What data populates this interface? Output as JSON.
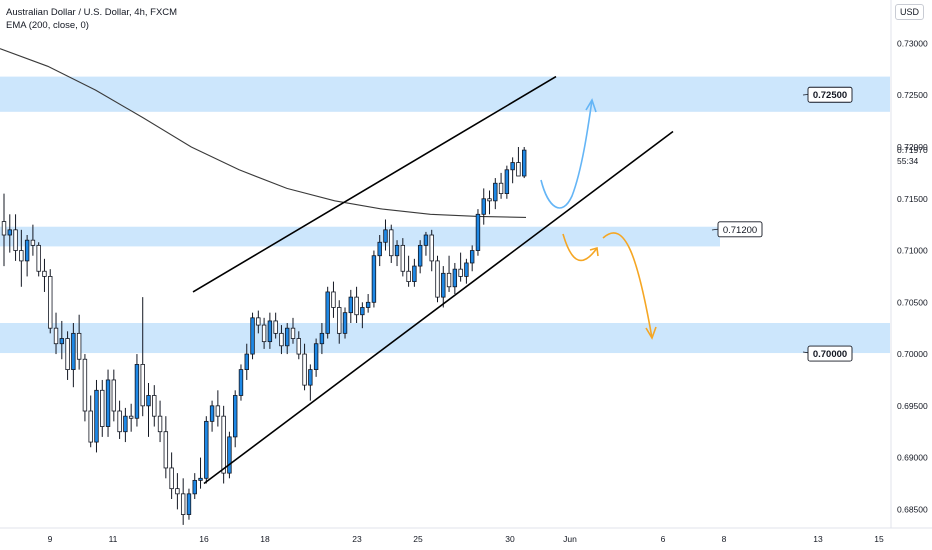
{
  "header": {
    "symbol_line": "Australian Dollar / U.S. Dollar, 4h, FXCM",
    "indicator_line": "EMA (200, close, 0)",
    "currency": "USD"
  },
  "colors": {
    "zone": "#bbdefb",
    "candle_up": "#1e88e5",
    "candle_down": "#ffffff",
    "wick": "#131722",
    "ema": "#3a3a3a",
    "channel": "#000000",
    "arrow_blue": "#64b5f6",
    "arrow_orange": "#f5a623",
    "axis_text": "#131722",
    "gridline": "#f0f3fa"
  },
  "chart_data": {
    "type": "candlestick",
    "symbol": "Australian Dollar / U.S. Dollar",
    "timeframe": "4h",
    "source": "FXCM",
    "indicator": "EMA (200, close, 0)",
    "ylim": [
      0.6832,
      0.7342
    ],
    "y_ticks": [
      "0.73000",
      "0.72500",
      "0.72000",
      "0.71500",
      "0.71000",
      "0.70500",
      "0.70000",
      "0.69500",
      "0.69000",
      "0.68500"
    ],
    "x_ticks": [
      "9",
      "11",
      "16",
      "18",
      "23",
      "25",
      "30",
      "Jun",
      "6",
      "8",
      "13",
      "15"
    ],
    "last_price_label": "0.71970",
    "countdown_label": "55:34",
    "zones": [
      {
        "from": 0.7234,
        "to": 0.7268,
        "label": "0.72500",
        "bold": true
      },
      {
        "from": 0.7104,
        "to": 0.7123,
        "label": "0.71200",
        "bold": false
      },
      {
        "from": 0.7001,
        "to": 0.703,
        "label": "0.70000",
        "bold": true
      }
    ],
    "channel": [
      {
        "from": [
          0.706
        ],
        "to": [
          0.7268
        ]
      },
      {
        "from": [
          0.6875
        ],
        "to": [
          0.7215
        ]
      }
    ],
    "ohlc": [
      [
        0.7128,
        0.7155,
        0.7085,
        0.7115
      ],
      [
        0.7115,
        0.7135,
        0.7098,
        0.712
      ],
      [
        0.712,
        0.7135,
        0.709,
        0.71
      ],
      [
        0.71,
        0.712,
        0.7065,
        0.709
      ],
      [
        0.709,
        0.7115,
        0.7075,
        0.711
      ],
      [
        0.711,
        0.7125,
        0.7095,
        0.7105
      ],
      [
        0.7105,
        0.7108,
        0.7075,
        0.708
      ],
      [
        0.708,
        0.7092,
        0.706,
        0.7075
      ],
      [
        0.7075,
        0.7082,
        0.702,
        0.7025
      ],
      [
        0.7025,
        0.704,
        0.7,
        0.701
      ],
      [
        0.701,
        0.7032,
        0.6995,
        0.7015
      ],
      [
        0.7015,
        0.7022,
        0.6975,
        0.6985
      ],
      [
        0.6985,
        0.703,
        0.6968,
        0.702
      ],
      [
        0.702,
        0.7038,
        0.6985,
        0.6995
      ],
      [
        0.6995,
        0.7,
        0.6935,
        0.6945
      ],
      [
        0.6945,
        0.696,
        0.691,
        0.6915
      ],
      [
        0.6915,
        0.6975,
        0.6905,
        0.6965
      ],
      [
        0.6965,
        0.6975,
        0.692,
        0.693
      ],
      [
        0.693,
        0.6985,
        0.692,
        0.6975
      ],
      [
        0.6975,
        0.6985,
        0.6935,
        0.6945
      ],
      [
        0.6945,
        0.6955,
        0.6918,
        0.6925
      ],
      [
        0.6925,
        0.6948,
        0.6915,
        0.694
      ],
      [
        0.694,
        0.6952,
        0.6925,
        0.6938
      ],
      [
        0.6938,
        0.7,
        0.693,
        0.699
      ],
      [
        0.699,
        0.7055,
        0.694,
        0.695
      ],
      [
        0.695,
        0.6972,
        0.692,
        0.696
      ],
      [
        0.696,
        0.697,
        0.693,
        0.694
      ],
      [
        0.694,
        0.6955,
        0.6915,
        0.6925
      ],
      [
        0.6925,
        0.694,
        0.688,
        0.689
      ],
      [
        0.689,
        0.6905,
        0.686,
        0.687
      ],
      [
        0.687,
        0.6885,
        0.685,
        0.6865
      ],
      [
        0.6865,
        0.688,
        0.6835,
        0.6845
      ],
      [
        0.6845,
        0.687,
        0.684,
        0.6865
      ],
      [
        0.6865,
        0.6885,
        0.686,
        0.6878
      ],
      [
        0.6878,
        0.69,
        0.687,
        0.688
      ],
      [
        0.688,
        0.694,
        0.6875,
        0.6935
      ],
      [
        0.6935,
        0.6955,
        0.6925,
        0.695
      ],
      [
        0.695,
        0.6965,
        0.693,
        0.694
      ],
      [
        0.694,
        0.695,
        0.6875,
        0.6885
      ],
      [
        0.6885,
        0.6925,
        0.688,
        0.692
      ],
      [
        0.692,
        0.6965,
        0.691,
        0.696
      ],
      [
        0.696,
        0.699,
        0.6955,
        0.6985
      ],
      [
        0.6985,
        0.701,
        0.6975,
        0.7
      ],
      [
        0.7,
        0.704,
        0.6995,
        0.7035
      ],
      [
        0.7035,
        0.7042,
        0.702,
        0.7028
      ],
      [
        0.7028,
        0.7035,
        0.7005,
        0.7012
      ],
      [
        0.7012,
        0.704,
        0.7005,
        0.7032
      ],
      [
        0.7032,
        0.704,
        0.7015,
        0.702
      ],
      [
        0.702,
        0.7028,
        0.7,
        0.7008
      ],
      [
        0.7008,
        0.703,
        0.7,
        0.7025
      ],
      [
        0.7025,
        0.7035,
        0.701,
        0.7015
      ],
      [
        0.7015,
        0.7022,
        0.6995,
        0.7
      ],
      [
        0.7,
        0.701,
        0.6965,
        0.697
      ],
      [
        0.697,
        0.699,
        0.6955,
        0.6985
      ],
      [
        0.6985,
        0.7015,
        0.6978,
        0.701
      ],
      [
        0.701,
        0.703,
        0.7,
        0.702
      ],
      [
        0.702,
        0.7065,
        0.7015,
        0.706
      ],
      [
        0.706,
        0.707,
        0.7035,
        0.7045
      ],
      [
        0.7045,
        0.7052,
        0.701,
        0.702
      ],
      [
        0.702,
        0.7045,
        0.7015,
        0.704
      ],
      [
        0.704,
        0.7062,
        0.703,
        0.7055
      ],
      [
        0.7055,
        0.7065,
        0.703,
        0.7038
      ],
      [
        0.7038,
        0.705,
        0.7025,
        0.7045
      ],
      [
        0.7045,
        0.7058,
        0.704,
        0.705
      ],
      [
        0.705,
        0.71,
        0.7045,
        0.7095
      ],
      [
        0.7095,
        0.7115,
        0.7085,
        0.7108
      ],
      [
        0.7108,
        0.713,
        0.71,
        0.712
      ],
      [
        0.712,
        0.7125,
        0.7088,
        0.7095
      ],
      [
        0.7095,
        0.711,
        0.7085,
        0.7105
      ],
      [
        0.7105,
        0.7112,
        0.7075,
        0.708
      ],
      [
        0.708,
        0.7095,
        0.7065,
        0.707
      ],
      [
        0.707,
        0.7092,
        0.7065,
        0.7085
      ],
      [
        0.7085,
        0.711,
        0.7078,
        0.7105
      ],
      [
        0.7105,
        0.7118,
        0.7095,
        0.7115
      ],
      [
        0.7115,
        0.712,
        0.708,
        0.709
      ],
      [
        0.709,
        0.7095,
        0.705,
        0.7055
      ],
      [
        0.7055,
        0.7085,
        0.7045,
        0.7078
      ],
      [
        0.7078,
        0.7095,
        0.706,
        0.7065
      ],
      [
        0.7065,
        0.7088,
        0.7058,
        0.7082
      ],
      [
        0.7082,
        0.7098,
        0.707,
        0.7075
      ],
      [
        0.7075,
        0.7092,
        0.7068,
        0.7088
      ],
      [
        0.7088,
        0.7105,
        0.708,
        0.71
      ],
      [
        0.71,
        0.714,
        0.7095,
        0.7135
      ],
      [
        0.7135,
        0.716,
        0.7125,
        0.715
      ],
      [
        0.715,
        0.7158,
        0.7135,
        0.7148
      ],
      [
        0.7148,
        0.717,
        0.714,
        0.7165
      ],
      [
        0.7165,
        0.7175,
        0.715,
        0.7155
      ],
      [
        0.7155,
        0.7182,
        0.715,
        0.7178
      ],
      [
        0.7178,
        0.719,
        0.7165,
        0.7185
      ],
      [
        0.7185,
        0.72,
        0.7175,
        0.7172
      ],
      [
        0.7172,
        0.72,
        0.717,
        0.7197
      ]
    ],
    "ema": [
      0.7295,
      0.7278,
      0.7255,
      0.7228,
      0.72,
      0.7178,
      0.716,
      0.7148,
      0.714,
      0.7135,
      0.7133,
      0.7132
    ]
  }
}
